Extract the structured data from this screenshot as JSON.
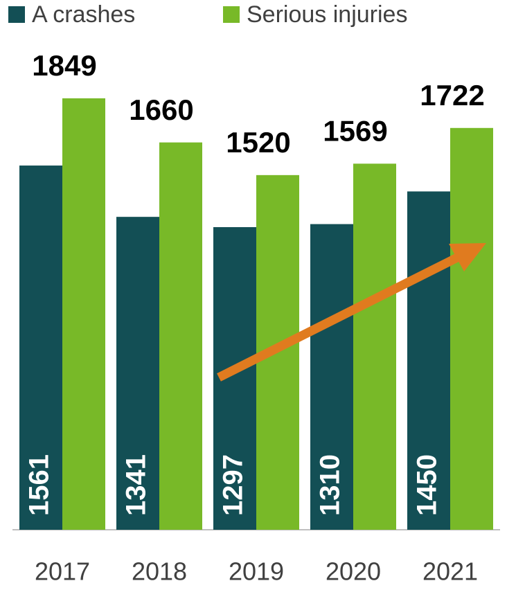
{
  "chart_data": {
    "type": "bar",
    "categories": [
      "2017",
      "2018",
      "2019",
      "2020",
      "2021"
    ],
    "series": [
      {
        "name": "A crashes",
        "color": "#134f55",
        "values": [
          1561,
          1341,
          1297,
          1310,
          1450
        ]
      },
      {
        "name": "Serious injuries",
        "color": "#78b928",
        "values": [
          1849,
          1660,
          1520,
          1569,
          1722
        ]
      }
    ],
    "legend": "top"
  }
}
